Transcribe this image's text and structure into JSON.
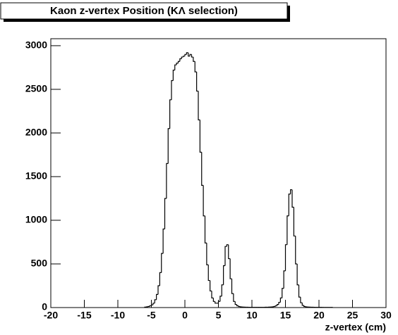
{
  "chart_data": {
    "type": "histogram",
    "title": "Kaon z-vertex Position (KΛ selection)",
    "x_label": "z-vertex (cm)",
    "color": "#000000",
    "xlim": [
      -20,
      30
    ],
    "ylim": [
      0,
      3080
    ],
    "xticks": [
      -20,
      -15,
      -10,
      -5,
      0,
      5,
      10,
      15,
      20,
      25,
      30
    ],
    "yticks": [
      0,
      500,
      1000,
      1500,
      2000,
      2500,
      3000
    ],
    "bins": [
      -6,
      -5.75,
      -5.5,
      -5.25,
      -5,
      -4.75,
      -4.5,
      -4.25,
      -4,
      -3.75,
      -3.5,
      -3.25,
      -3,
      -2.75,
      -2.5,
      -2.25,
      -2,
      -1.75,
      -1.5,
      -1.25,
      -1,
      -0.75,
      -0.5,
      -0.25,
      0,
      0.25,
      0.5,
      0.75,
      1,
      1.25,
      1.5,
      1.75,
      2,
      2.25,
      2.5,
      2.75,
      3,
      3.25,
      3.5,
      3.75,
      4,
      4.25,
      4.5,
      4.75,
      5,
      5.25,
      5.5,
      5.75,
      6,
      6.25,
      6.5,
      6.75,
      7,
      7.25,
      7.5,
      7.75,
      8,
      8.25,
      8.5,
      8.75,
      9,
      9.25,
      9.5,
      9.75,
      10,
      10.25,
      10.5,
      10.75,
      11,
      11.25,
      11.5,
      11.75,
      12,
      12.25,
      12.5,
      12.75,
      13,
      13.25,
      13.5,
      13.75,
      14,
      14.25,
      14.5,
      14.75,
      15,
      15.25,
      15.5,
      15.75,
      16,
      16.25,
      16.5,
      16.75,
      17,
      17.25,
      17.5,
      17.75,
      18,
      18.25,
      18.5,
      18.75,
      19,
      19.25,
      19.5,
      19.75,
      20,
      20.25,
      20.5,
      20.75,
      21,
      21.25,
      21.5,
      21.75,
      22
    ],
    "values": [
      5,
      8,
      12,
      20,
      30,
      50,
      90,
      150,
      250,
      400,
      620,
      900,
      1250,
      1650,
      2050,
      2380,
      2600,
      2720,
      2780,
      2800,
      2820,
      2850,
      2870,
      2880,
      2900,
      2920,
      2880,
      2900,
      2870,
      2820,
      2700,
      2480,
      2150,
      1780,
      1400,
      1050,
      740,
      490,
      310,
      190,
      110,
      70,
      50,
      50,
      70,
      130,
      260,
      480,
      700,
      720,
      560,
      330,
      160,
      70,
      35,
      20,
      12,
      8,
      6,
      5,
      4,
      4,
      3,
      3,
      3,
      3,
      3,
      3,
      3,
      3,
      3,
      3,
      4,
      4,
      5,
      6,
      8,
      12,
      20,
      35,
      60,
      110,
      220,
      420,
      720,
      1050,
      1300,
      1350,
      1150,
      820,
      500,
      260,
      120,
      55,
      25,
      12,
      8,
      6,
      5,
      4,
      4,
      3,
      3,
      3,
      3,
      3,
      2,
      2,
      2,
      2,
      2,
      2
    ]
  }
}
